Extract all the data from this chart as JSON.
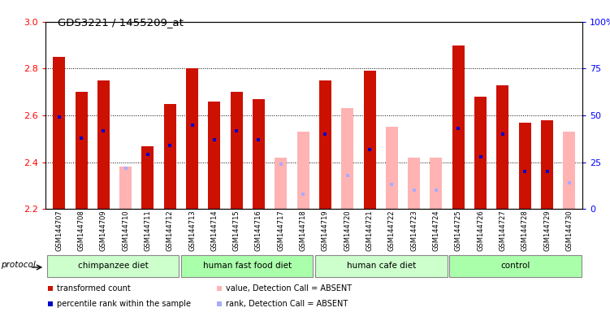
{
  "title": "GDS3221 / 1455209_at",
  "samples": [
    "GSM144707",
    "GSM144708",
    "GSM144709",
    "GSM144710",
    "GSM144711",
    "GSM144712",
    "GSM144713",
    "GSM144714",
    "GSM144715",
    "GSM144716",
    "GSM144717",
    "GSM144718",
    "GSM144719",
    "GSM144720",
    "GSM144721",
    "GSM144722",
    "GSM144723",
    "GSM144724",
    "GSM144725",
    "GSM144726",
    "GSM144727",
    "GSM144728",
    "GSM144729",
    "GSM144730"
  ],
  "bar_values": [
    2.85,
    2.7,
    2.75,
    null,
    2.47,
    2.65,
    2.8,
    2.66,
    2.7,
    2.67,
    null,
    null,
    2.75,
    null,
    2.79,
    null,
    null,
    null,
    2.9,
    2.68,
    2.73,
    2.57,
    2.58,
    null
  ],
  "absent_values": [
    null,
    null,
    null,
    2.38,
    null,
    null,
    null,
    null,
    null,
    null,
    2.42,
    2.53,
    null,
    2.63,
    null,
    2.55,
    2.42,
    2.42,
    null,
    null,
    null,
    null,
    null,
    2.53
  ],
  "percentile_present": [
    49,
    38,
    42,
    null,
    29,
    34,
    45,
    37,
    42,
    37,
    null,
    null,
    40,
    null,
    32,
    null,
    null,
    null,
    43,
    28,
    40,
    20,
    20,
    null
  ],
  "percentile_absent": [
    null,
    null,
    null,
    22,
    null,
    null,
    null,
    null,
    null,
    null,
    24,
    8,
    null,
    18,
    null,
    13,
    10,
    10,
    null,
    null,
    null,
    null,
    null,
    14
  ],
  "groups": [
    {
      "label": "chimpanzee diet",
      "start": 0,
      "end": 6
    },
    {
      "label": "human fast food diet",
      "start": 6,
      "end": 12
    },
    {
      "label": "human cafe diet",
      "start": 12,
      "end": 18
    },
    {
      "label": "control",
      "start": 18,
      "end": 24
    }
  ],
  "group_colors": [
    "#ccffcc",
    "#aaffaa",
    "#ccffcc",
    "#aaffaa"
  ],
  "ylim": [
    2.2,
    3.0
  ],
  "y2lim": [
    0,
    100
  ],
  "yticks": [
    2.2,
    2.4,
    2.6,
    2.8,
    3.0
  ],
  "y2ticks": [
    0,
    25,
    50,
    75,
    100
  ],
  "bar_color_present": "#cc1100",
  "bar_color_absent": "#ffb3b3",
  "dot_color_present": "#0000cc",
  "dot_color_absent": "#aaaaff",
  "bar_width": 0.55,
  "legend_items": [
    {
      "color": "#cc1100",
      "marker": "s",
      "label": "transformed count"
    },
    {
      "color": "#0000cc",
      "marker": "s",
      "label": "percentile rank within the sample"
    },
    {
      "color": "#ffb3b3",
      "marker": "s",
      "label": "value, Detection Call = ABSENT"
    },
    {
      "color": "#aaaaff",
      "marker": "s",
      "label": "rank, Detection Call = ABSENT"
    }
  ]
}
